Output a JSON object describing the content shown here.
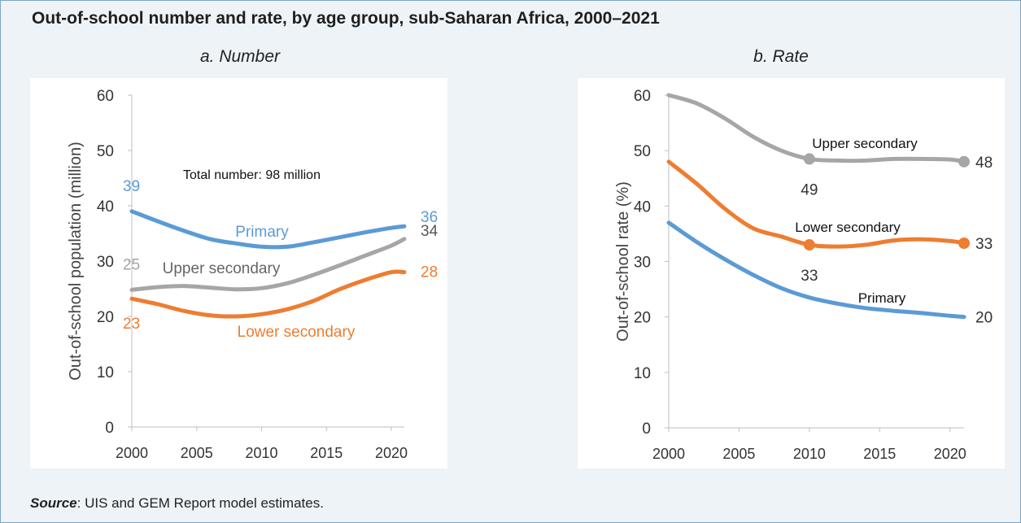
{
  "title": "Out-of-school number and rate, by age group, sub-Saharan Africa, 2000–2021",
  "source_label": "Source",
  "source_text": ": UIS and GEM Report model estimates.",
  "colors": {
    "primary": "#5b9bd5",
    "upper": "#a6a6a6",
    "lower": "#ed7d31"
  },
  "chart_data": [
    {
      "type": "line",
      "title": "a. Number",
      "xlabel": "",
      "ylabel": "Out-of-school population (million)",
      "xlim": [
        2000,
        2021
      ],
      "ylim": [
        0,
        60
      ],
      "xticks": [
        2000,
        2005,
        2010,
        2015,
        2020
      ],
      "yticks": [
        0,
        10,
        20,
        30,
        40,
        50,
        60
      ],
      "grid": false,
      "annotation": "Total number: 98 million",
      "series": [
        {
          "name": "Primary",
          "color": "#5b9bd5",
          "x": [
            2000,
            2002,
            2004,
            2006,
            2008,
            2010,
            2012,
            2014,
            2016,
            2018,
            2020,
            2021
          ],
          "values": [
            39,
            37.2,
            35.5,
            34,
            33.2,
            32.6,
            32.6,
            33.4,
            34.3,
            35.2,
            36,
            36.3
          ],
          "start_label": "39",
          "end_label": "36"
        },
        {
          "name": "Upper secondary",
          "color": "#a6a6a6",
          "x": [
            2000,
            2002,
            2004,
            2006,
            2008,
            2010,
            2012,
            2014,
            2016,
            2018,
            2020,
            2021
          ],
          "values": [
            24.8,
            25.3,
            25.5,
            25.2,
            24.9,
            25.1,
            26,
            27.5,
            29.2,
            31,
            32.8,
            34
          ],
          "start_label": "25",
          "end_label": "34"
        },
        {
          "name": "Lower secondary",
          "color": "#ed7d31",
          "x": [
            2000,
            2002,
            2004,
            2006,
            2008,
            2010,
            2012,
            2014,
            2016,
            2018,
            2020,
            2021
          ],
          "values": [
            23.2,
            22.2,
            21,
            20.2,
            20,
            20.4,
            21.3,
            22.8,
            24.9,
            26.6,
            28,
            28
          ],
          "start_label": "23",
          "end_label": "28"
        }
      ]
    },
    {
      "type": "line",
      "title": "b. Rate",
      "xlabel": "",
      "ylabel": "Out-of-school rate (%)",
      "xlim": [
        2000,
        2021
      ],
      "ylim": [
        0,
        60
      ],
      "xticks": [
        2000,
        2005,
        2010,
        2015,
        2020
      ],
      "yticks": [
        0,
        10,
        20,
        30,
        40,
        50,
        60
      ],
      "grid": false,
      "series": [
        {
          "name": "Upper secondary",
          "color": "#a6a6a6",
          "x": [
            2000,
            2002,
            2004,
            2006,
            2008,
            2010,
            2012,
            2014,
            2016,
            2018,
            2020,
            2021
          ],
          "values": [
            60,
            58.5,
            55.8,
            52.5,
            50,
            48.5,
            48.2,
            48.2,
            48.5,
            48.5,
            48.4,
            48
          ],
          "markers": [
            {
              "x": 2010,
              "y": 48.5,
              "label": "49"
            },
            {
              "x": 2021,
              "y": 48,
              "label": "48"
            }
          ]
        },
        {
          "name": "Lower secondary",
          "color": "#ed7d31",
          "x": [
            2000,
            2002,
            2004,
            2006,
            2008,
            2010,
            2012,
            2014,
            2016,
            2018,
            2020,
            2021
          ],
          "values": [
            48,
            44,
            39.5,
            36,
            34.5,
            33,
            32.7,
            33,
            33.8,
            34,
            33.7,
            33.3
          ],
          "markers": [
            {
              "x": 2010,
              "y": 33,
              "label": "33"
            },
            {
              "x": 2021,
              "y": 33.3,
              "label": "33"
            }
          ]
        },
        {
          "name": "Primary",
          "color": "#5b9bd5",
          "x": [
            2000,
            2002,
            2004,
            2006,
            2008,
            2010,
            2012,
            2014,
            2016,
            2018,
            2020,
            2021
          ],
          "values": [
            37,
            33.5,
            30.4,
            27.6,
            25.2,
            23.5,
            22.4,
            21.6,
            21.1,
            20.7,
            20.2,
            20
          ],
          "end_label": "20"
        }
      ]
    }
  ]
}
